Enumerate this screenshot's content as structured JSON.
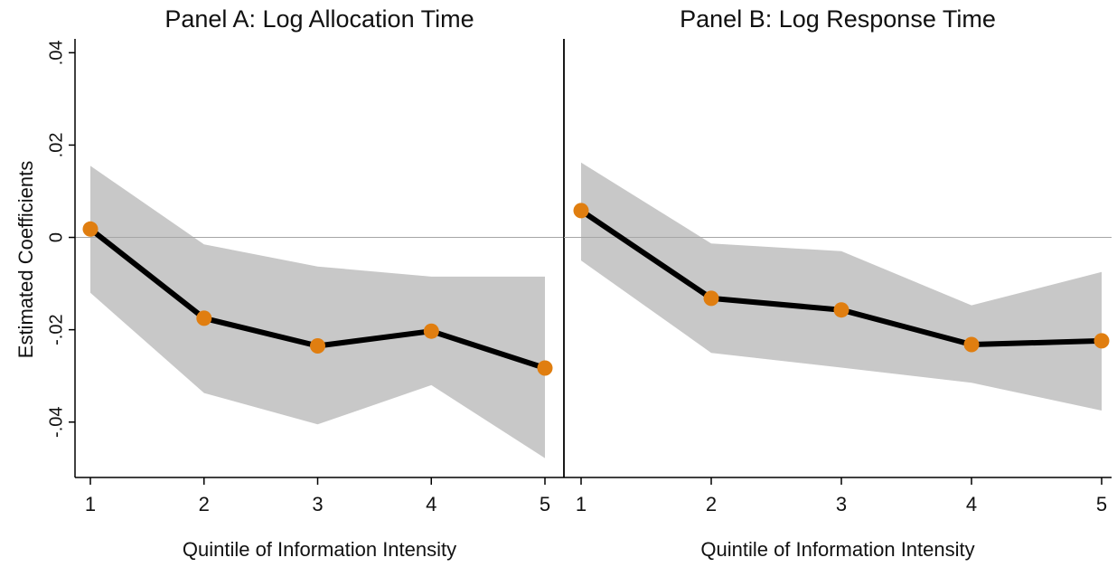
{
  "chart_data": [
    {
      "type": "line",
      "title": "Panel A: Log Allocation Time",
      "xlabel": "Quintile of Information Intensity",
      "ylabel": "Estimated Coefficients",
      "x": [
        1,
        2,
        3,
        4,
        5
      ],
      "x_tick_labels": [
        "1",
        "2",
        "3",
        "4",
        "5"
      ],
      "y_tick_values": [
        0.04,
        0.02,
        0,
        -0.02,
        -0.04
      ],
      "y_tick_labels": [
        ".04",
        ".02",
        "0",
        "-.02",
        "-.04"
      ],
      "ylim": [
        -0.052,
        0.043
      ],
      "reference_line": 0,
      "series": [
        {
          "values": [
            0.0018,
            -0.0175,
            -0.0235,
            -0.0203,
            -0.0283
          ],
          "ci_upper": [
            0.0155,
            -0.0015,
            -0.0063,
            -0.0085,
            -0.0085
          ],
          "ci_lower": [
            -0.012,
            -0.0337,
            -0.0405,
            -0.032,
            -0.0478
          ]
        }
      ],
      "grid": false,
      "colors": {
        "line": "#000000",
        "marker": "#e07e10",
        "band": "#c8c8c8",
        "refline": "#a6a6a6"
      }
    },
    {
      "type": "line",
      "title": "Panel B: Log Response Time",
      "xlabel": "Quintile of Information Intensity",
      "ylabel": "",
      "x": [
        1,
        2,
        3,
        4,
        5
      ],
      "x_tick_labels": [
        "1",
        "2",
        "3",
        "4",
        "5"
      ],
      "ylim": [
        -0.052,
        0.043
      ],
      "reference_line": 0,
      "series": [
        {
          "values": [
            0.0058,
            -0.0132,
            -0.0157,
            -0.0232,
            -0.0224
          ],
          "ci_upper": [
            0.0162,
            -0.0013,
            -0.003,
            -0.0147,
            -0.0075
          ],
          "ci_lower": [
            -0.005,
            -0.025,
            -0.0282,
            -0.0315,
            -0.0375
          ]
        }
      ],
      "grid": false,
      "colors": {
        "line": "#000000",
        "marker": "#e07e10",
        "band": "#c8c8c8",
        "refline": "#a6a6a6"
      }
    }
  ]
}
